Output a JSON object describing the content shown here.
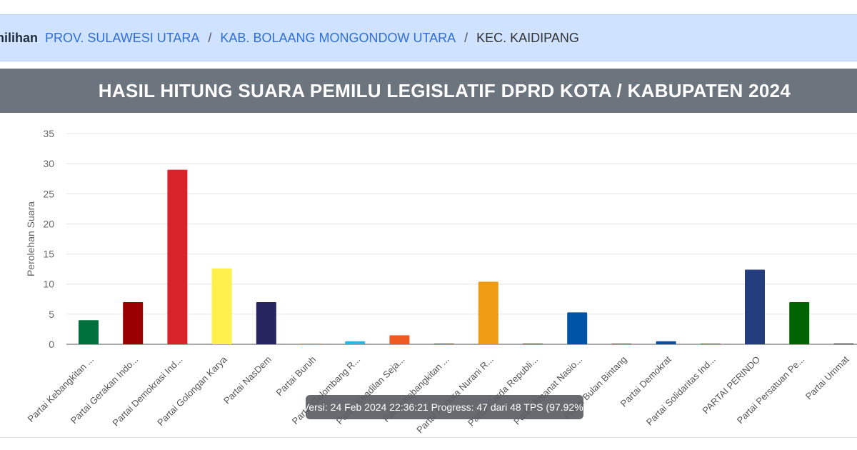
{
  "breadcrumb": {
    "first": "milihan",
    "items": [
      "PROV. SULAWESI UTARA",
      "KAB. BOLAANG MONGONDOW UTARA"
    ],
    "separator": "/",
    "current": "KEC. KAIDIPANG"
  },
  "banner": {
    "title": "HASIL HITUNG SUARA PEMILU LEGISLATIF DPRD KOTA / KABUPATEN 2024"
  },
  "tooltip": {
    "text": "Versi: 24 Feb 2024 22:36:21 Progress: 47 dari 48 TPS (97.92%)"
  },
  "chart_data": {
    "type": "bar",
    "title": "",
    "xlabel": "",
    "ylabel": "Perolehan Suara",
    "ylim": [
      0,
      35
    ],
    "yticks": [
      0,
      5,
      10,
      15,
      20,
      25,
      30,
      35
    ],
    "grid": true,
    "legend": "none",
    "categories": [
      "Partai Kebangkitan ...",
      "Partai Gerakan Indo...",
      "Partai Demokrasi Ind...",
      "Partai Golongan Karya",
      "Partai NasDem",
      "Partai Buruh",
      "Partai Gelombang R...",
      "Partai Keadilan Seja...",
      "Partai Kebangkitan ...",
      "Partai Hanura Nurani R...",
      "Partai Garda Republi...",
      "Partai Amanat Nasio...",
      "Partai Bulan Bintang",
      "Partai Demokrat",
      "Partai Solidaritas Ind...",
      "PARTAI PERINDO",
      "Partai Persatuan Pe...",
      "Partai Ummat"
    ],
    "values": [
      4,
      7,
      29,
      12.6,
      7,
      0,
      0.5,
      1.5,
      0,
      10.4,
      0,
      5.3,
      0,
      0.5,
      0,
      12.4,
      7,
      0
    ],
    "colors": [
      "#00703c",
      "#990000",
      "#d8232a",
      "#fff04d",
      "#27255f",
      "#f47a20",
      "#26b6e8",
      "#f05a22",
      "#6b3f1d",
      "#f09b14",
      "#8a1e1e",
      "#0054a6",
      "#007a3d",
      "#0a4fa0",
      "#e31d2b",
      "#243d7e",
      "#006400",
      "#111111"
    ]
  }
}
